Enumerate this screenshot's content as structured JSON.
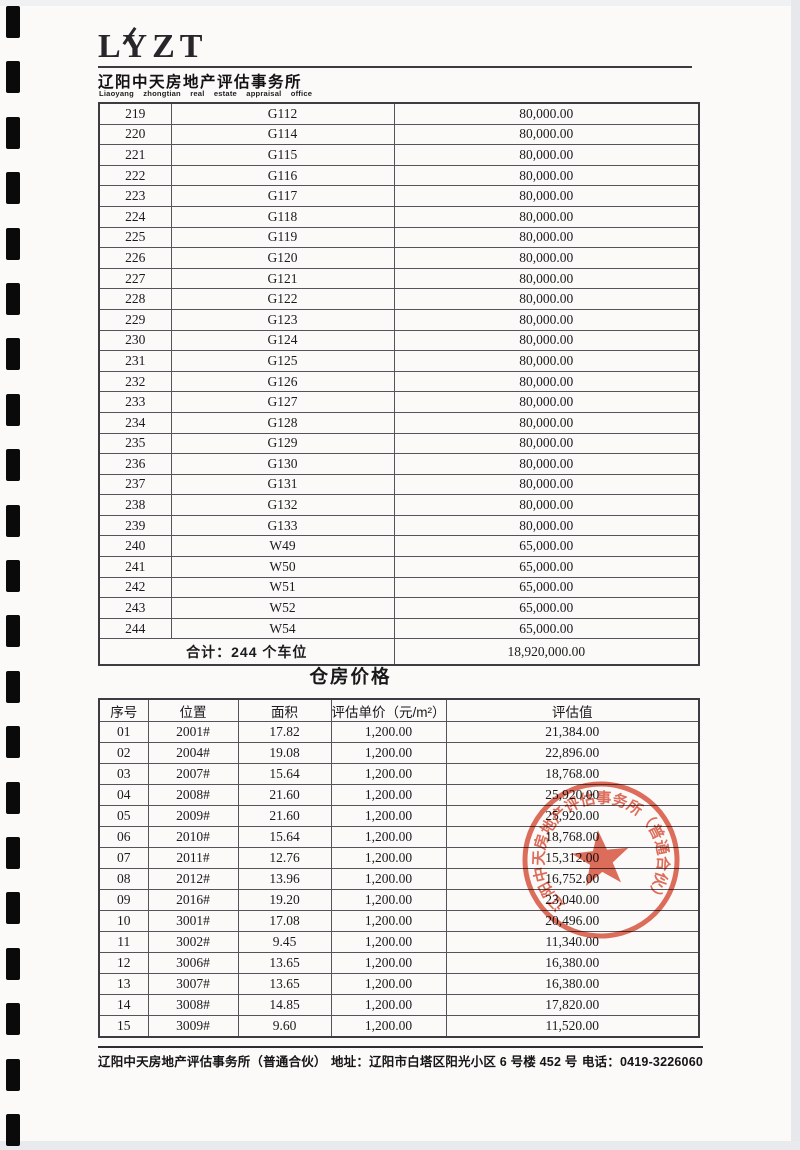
{
  "header": {
    "logo": "LYZT",
    "company_cn": "辽阳中天房地产评估事务所",
    "company_en": "Liaoyang zhongtian real estate appraisal office"
  },
  "parking": {
    "rows": [
      [
        "219",
        "G112",
        "80,000.00"
      ],
      [
        "220",
        "G114",
        "80,000.00"
      ],
      [
        "221",
        "G115",
        "80,000.00"
      ],
      [
        "222",
        "G116",
        "80,000.00"
      ],
      [
        "223",
        "G117",
        "80,000.00"
      ],
      [
        "224",
        "G118",
        "80,000.00"
      ],
      [
        "225",
        "G119",
        "80,000.00"
      ],
      [
        "226",
        "G120",
        "80,000.00"
      ],
      [
        "227",
        "G121",
        "80,000.00"
      ],
      [
        "228",
        "G122",
        "80,000.00"
      ],
      [
        "229",
        "G123",
        "80,000.00"
      ],
      [
        "230",
        "G124",
        "80,000.00"
      ],
      [
        "231",
        "G125",
        "80,000.00"
      ],
      [
        "232",
        "G126",
        "80,000.00"
      ],
      [
        "233",
        "G127",
        "80,000.00"
      ],
      [
        "234",
        "G128",
        "80,000.00"
      ],
      [
        "235",
        "G129",
        "80,000.00"
      ],
      [
        "236",
        "G130",
        "80,000.00"
      ],
      [
        "237",
        "G131",
        "80,000.00"
      ],
      [
        "238",
        "G132",
        "80,000.00"
      ],
      [
        "239",
        "G133",
        "80,000.00"
      ],
      [
        "240",
        "W49",
        "65,000.00"
      ],
      [
        "241",
        "W50",
        "65,000.00"
      ],
      [
        "242",
        "W51",
        "65,000.00"
      ],
      [
        "243",
        "W52",
        "65,000.00"
      ],
      [
        "244",
        "W54",
        "65,000.00"
      ]
    ],
    "total_label": "合计：244 个车位",
    "total_value": "18,920,000.00"
  },
  "warehouse": {
    "title": "仓房价格",
    "headers": [
      "序号",
      "位置",
      "面积",
      "评估单价（元/m²）",
      "评估值"
    ],
    "rows": [
      [
        "01",
        "2001#",
        "17.82",
        "1,200.00",
        "21,384.00"
      ],
      [
        "02",
        "2004#",
        "19.08",
        "1,200.00",
        "22,896.00"
      ],
      [
        "03",
        "2007#",
        "15.64",
        "1,200.00",
        "18,768.00"
      ],
      [
        "04",
        "2008#",
        "21.60",
        "1,200.00",
        "25,920.00"
      ],
      [
        "05",
        "2009#",
        "21.60",
        "1,200.00",
        "25,920.00"
      ],
      [
        "06",
        "2010#",
        "15.64",
        "1,200.00",
        "18,768.00"
      ],
      [
        "07",
        "2011#",
        "12.76",
        "1,200.00",
        "15,312.00"
      ],
      [
        "08",
        "2012#",
        "13.96",
        "1,200.00",
        "16,752.00"
      ],
      [
        "09",
        "2016#",
        "19.20",
        "1,200.00",
        "23,040.00"
      ],
      [
        "10",
        "3001#",
        "17.08",
        "1,200.00",
        "20,496.00"
      ],
      [
        "11",
        "3002#",
        "9.45",
        "1,200.00",
        "11,340.00"
      ],
      [
        "12",
        "3006#",
        "13.65",
        "1,200.00",
        "16,380.00"
      ],
      [
        "13",
        "3007#",
        "13.65",
        "1,200.00",
        "16,380.00"
      ],
      [
        "14",
        "3008#",
        "14.85",
        "1,200.00",
        "17,820.00"
      ],
      [
        "15",
        "3009#",
        "9.60",
        "1,200.00",
        "11,520.00"
      ]
    ]
  },
  "stamp": {
    "text": "辽阳中天房地产评估事务所（普通合伙）",
    "color": "#d9462f"
  },
  "footer": {
    "company": "辽阳中天房地产评估事务所（普通合伙）",
    "address": "地址：辽阳市白塔区阳光小区 6 号楼 452 号",
    "phone": "电话：0419-3226060"
  }
}
